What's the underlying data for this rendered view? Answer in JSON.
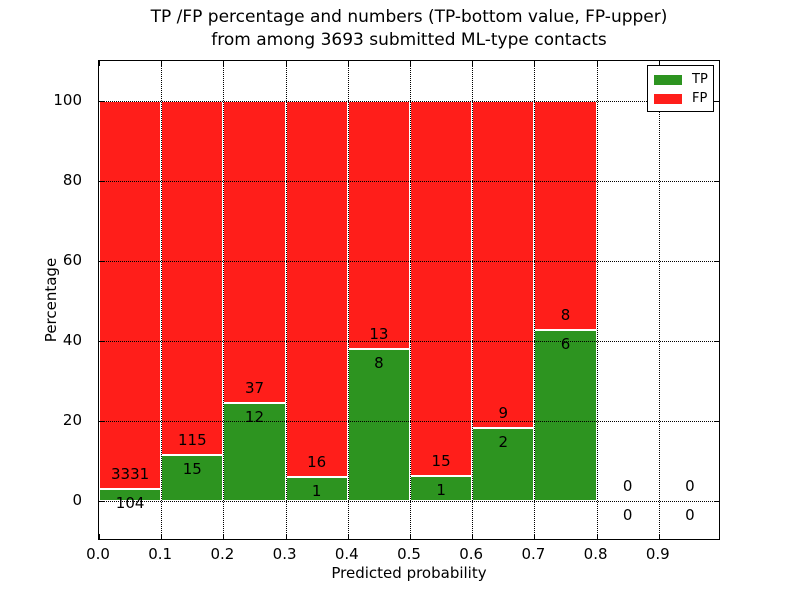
{
  "title": {
    "line1": "TP /FP percentage and numbers (TP-bottom value, FP-upper)",
    "line2": "from among 3693 submitted ML-type contacts"
  },
  "chart_data": {
    "type": "bar",
    "stacked": true,
    "normalized": "each bar scaled to 100%, segment labels show raw counts",
    "bin_starts": [
      0.0,
      0.1,
      0.2,
      0.3,
      0.4,
      0.5,
      0.6,
      0.7,
      0.8,
      0.9
    ],
    "bin_width": 0.1,
    "series": [
      {
        "name": "TP",
        "color": "#2d9420",
        "values": [
          104,
          15,
          12,
          1,
          8,
          1,
          2,
          6,
          0,
          0
        ]
      },
      {
        "name": "FP",
        "color": "#ff1e1a",
        "values": [
          3331,
          115,
          37,
          16,
          13,
          15,
          9,
          8,
          0,
          0
        ]
      }
    ],
    "total_contacts": 3693,
    "xlabel": "Predicted probability",
    "ylabel": "Percentage",
    "xlim": [
      0.0,
      1.0
    ],
    "ylim": [
      -10,
      110
    ],
    "yticks": [
      0,
      20,
      40,
      60,
      80,
      100
    ],
    "xtick_labels": [
      "0.0",
      "0.1",
      "0.2",
      "0.3",
      "0.4",
      "0.5",
      "0.6",
      "0.7",
      "0.8",
      "0.9"
    ],
    "grid": "dotted black, drawn above bars",
    "legend": {
      "position": "upper right",
      "entries": [
        "TP",
        "FP"
      ]
    },
    "bar_edge_color": "#ffffff"
  }
}
